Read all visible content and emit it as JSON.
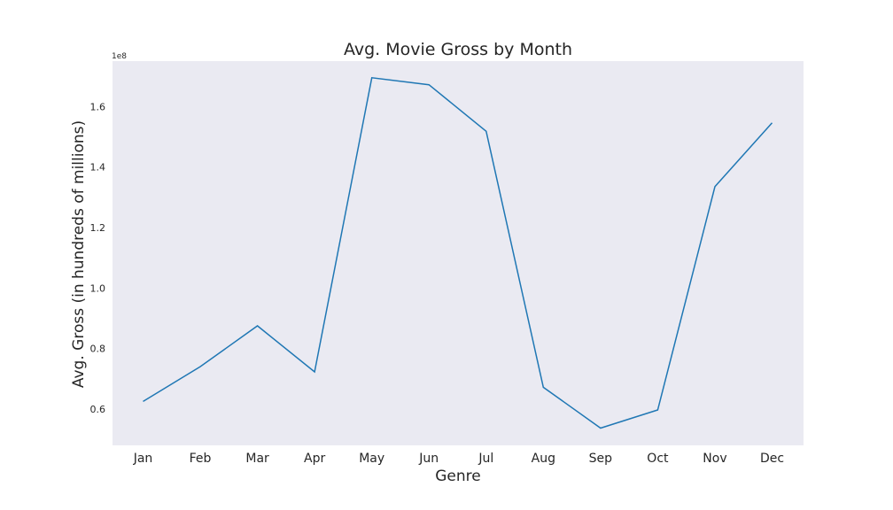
{
  "chart_data": {
    "type": "line",
    "title": "Avg. Movie Gross by Month",
    "xlabel": "Genre",
    "ylabel": "Avg. Gross (in hundreds of millions)",
    "y_offset_label": "1e8",
    "categories": [
      "Jan",
      "Feb",
      "Mar",
      "Apr",
      "May",
      "Jun",
      "Jul",
      "Aug",
      "Sep",
      "Oct",
      "Nov",
      "Dec"
    ],
    "series": [
      {
        "values": [
          62500000,
          74000000,
          87500000,
          72300000,
          169500000,
          167200000,
          151800000,
          67200000,
          53700000,
          59700000,
          133500000,
          154600000
        ]
      }
    ],
    "yticks": [
      0.6,
      0.8,
      1.0,
      1.2,
      1.4,
      1.6
    ],
    "ytick_labels": [
      "0.6",
      "0.8",
      "1.0",
      "1.2",
      "1.4",
      "1.6"
    ],
    "ylim": [
      0.48,
      1.75
    ],
    "grid": false,
    "background_color": "#eaeaf2",
    "line_color": "#1f77b4"
  }
}
